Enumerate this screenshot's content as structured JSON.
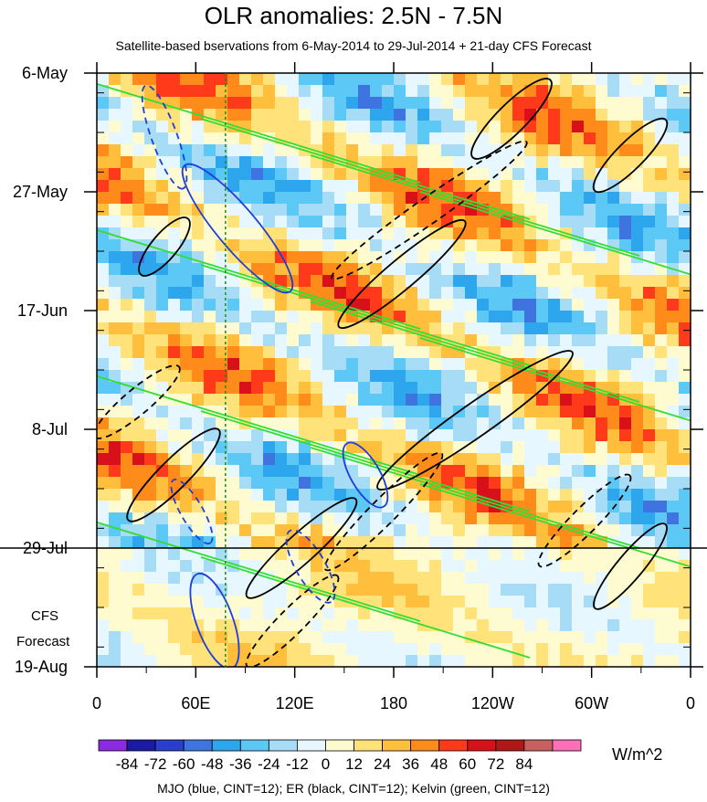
{
  "title": "OLR anomalies: 2.5N - 7.5N",
  "subtitle": "Satellite-based bservations from 6-May-2014 to 29-Jul-2014 + 21-day CFS Forecast",
  "footer": "MJO (blue, CINT=12); ER (black, CINT=12); Kelvin (green, CINT=12)",
  "colorbar": {
    "unit": "W/m^2",
    "levels": [
      -84,
      -72,
      -60,
      -48,
      -36,
      -24,
      -12,
      0,
      12,
      24,
      36,
      48,
      60,
      72,
      84
    ],
    "level_labels": [
      "-84",
      "-72",
      "-60",
      "-48",
      "-36",
      "-24",
      "-12",
      "0",
      "12",
      "24",
      "36",
      "48",
      "60",
      "72",
      "84"
    ],
    "colors": [
      "#8a2be2",
      "#1a1aa6",
      "#2b3fcf",
      "#3f74e0",
      "#2ea6ee",
      "#5cc8f5",
      "#a6dcf5",
      "#e6f7ff",
      "#fffbd0",
      "#ffe27a",
      "#ffbe3c",
      "#ff8c1a",
      "#ff3a1a",
      "#d8101a",
      "#b01818",
      "#c86060",
      "#ff70b8"
    ]
  },
  "forecast_label": [
    "CFS",
    "Forecast"
  ],
  "chart_data": {
    "type": "heatmap",
    "title": "OLR anomalies: 2.5N - 7.5N",
    "x_ticks": [
      {
        "label": "0",
        "lon": 0
      },
      {
        "label": "60E",
        "lon": 60
      },
      {
        "label": "120E",
        "lon": 120
      },
      {
        "label": "180",
        "lon": 180
      },
      {
        "label": "120W",
        "lon": 240
      },
      {
        "label": "60W",
        "lon": 300
      },
      {
        "label": "0",
        "lon": 360
      }
    ],
    "xlim": [
      0,
      360
    ],
    "y_ticks": [
      {
        "label": "6-May",
        "day": 0
      },
      {
        "label": "27-May",
        "day": 21
      },
      {
        "label": "17-Jun",
        "day": 42
      },
      {
        "label": "8-Jul",
        "day": 63
      },
      {
        "label": "29-Jul",
        "day": 84
      },
      {
        "label": "19-Aug",
        "day": 105
      }
    ],
    "observation_end": "29-Jul",
    "reference_line_lon": 78,
    "contour_legend": [
      {
        "name": "MJO",
        "color": "#1f3fd8"
      },
      {
        "name": "ER",
        "color": "#000000"
      },
      {
        "name": "Kelvin",
        "color": "#33dd33"
      }
    ]
  }
}
